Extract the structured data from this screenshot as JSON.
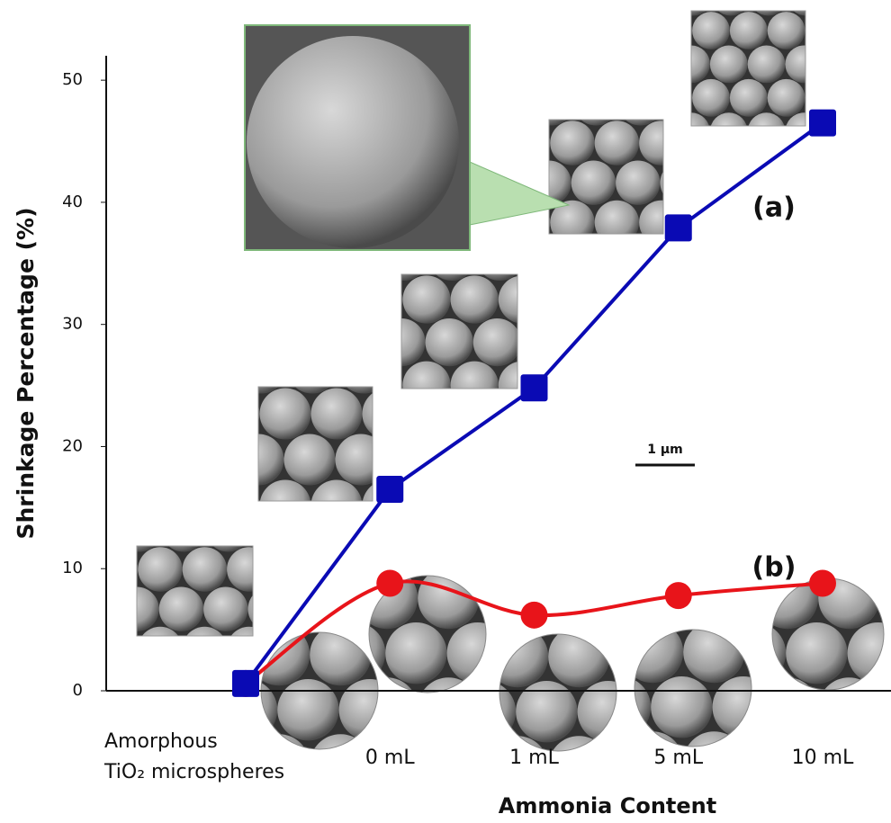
{
  "chart_data": {
    "type": "line",
    "x_label": "Ammonia Content",
    "y_label": "Shrinkage Percentage (%)",
    "categories": [
      "Amorphous\nTiO₂ microspheres",
      "0 mL",
      "1 mL",
      "5 mL",
      "10 mL"
    ],
    "series": [
      {
        "name": "(a)",
        "color": "#0a0ab4",
        "marker": "square",
        "smooth": false,
        "values": [
          0.6,
          16.5,
          24.8,
          37.9,
          46.5
        ]
      },
      {
        "name": "(b)",
        "color": "#e8141a",
        "marker": "circle",
        "smooth": true,
        "values": [
          0.6,
          8.8,
          6.2,
          7.8,
          8.8
        ]
      }
    ],
    "ylim": [
      0,
      52
    ],
    "yticks": [
      0,
      10,
      20,
      30,
      40,
      50
    ],
    "annotations": [
      "1 μm"
    ]
  }
}
